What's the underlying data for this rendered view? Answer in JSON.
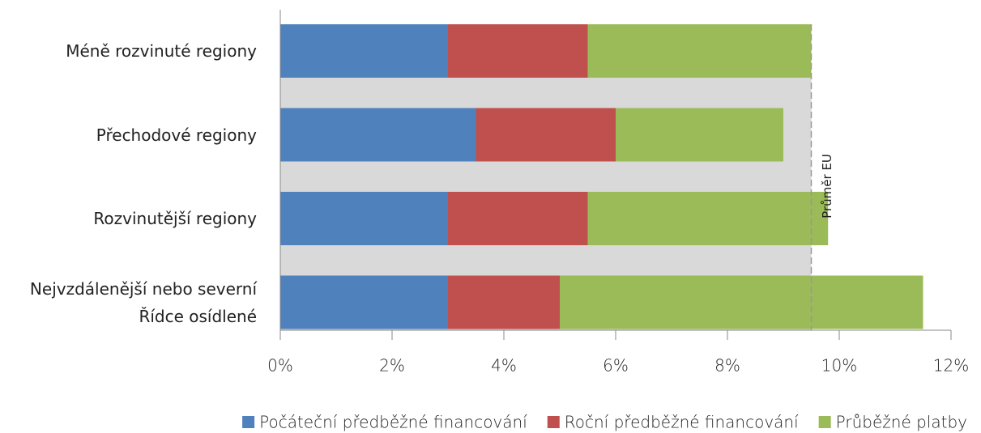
{
  "chart_data": {
    "type": "stacked_bar_horizontal",
    "categories": [
      "Méně rozvinuté regiony",
      "Přechodové regiony",
      "Rozvinutější regiony",
      "Nejvzdálenější nebo severní\nŘídce osídlené"
    ],
    "series": [
      {
        "name": "Počáteční předběžné financování",
        "color": "#4f81bd",
        "values": [
          3,
          3.5,
          3,
          3
        ]
      },
      {
        "name": "Roční předběžné financování",
        "color": "#c0504d",
        "values": [
          2.5,
          2.5,
          2.5,
          2
        ]
      },
      {
        "name": "Průběžné platby",
        "color": "#9bbb59",
        "values": [
          4,
          3,
          4.3,
          6.5
        ]
      }
    ],
    "xlim": [
      0,
      12
    ],
    "xticks": [
      {
        "value": 0,
        "label": "0%"
      },
      {
        "value": 2,
        "label": "2%"
      },
      {
        "value": 4,
        "label": "4%"
      },
      {
        "value": 6,
        "label": "6%"
      },
      {
        "value": 8,
        "label": "8%"
      },
      {
        "value": 10,
        "label": "10%"
      },
      {
        "value": 12,
        "label": "12%"
      }
    ],
    "reference": {
      "label": "Průměr EU",
      "value": 9.5,
      "color": "#d9d9d9"
    },
    "legend": "bottom"
  }
}
